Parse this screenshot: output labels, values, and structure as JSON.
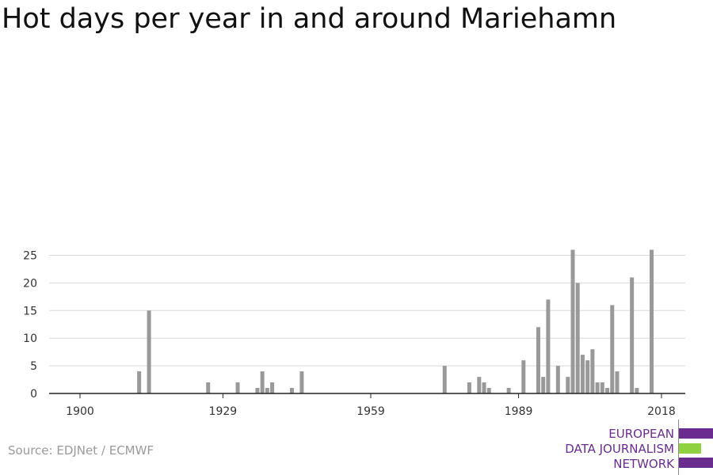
{
  "title": "Hot days per year in and around Mariehamn",
  "source": "Source: EDJNet / ECMWF",
  "logo": {
    "lines": [
      "EUROPEAN",
      "DATA JOURNALISM",
      "NETWORK"
    ],
    "colors": [
      "#6a2d8f",
      "#8fd13f",
      "#6a2d8f"
    ]
  },
  "chart_data": {
    "type": "bar",
    "title": "Hot days per year in and around Mariehamn",
    "xlabel": "",
    "ylabel": "",
    "xlim": [
      1894,
      2020
    ],
    "ylim": [
      0,
      27
    ],
    "x_ticks": [
      1900,
      1929,
      1959,
      1989,
      2018
    ],
    "y_ticks": [
      0,
      5,
      10,
      15,
      20,
      25
    ],
    "grid": true,
    "bar_color": "#999999",
    "series": [
      {
        "x": [
          1912,
          1914,
          1926,
          1932,
          1936,
          1937,
          1938,
          1939,
          1943,
          1945,
          1974,
          1979,
          1981,
          1982,
          1983,
          1987,
          1990,
          1993,
          1994,
          1995,
          1997,
          1999,
          2000,
          2001,
          2002,
          2003,
          2004,
          2005,
          2006,
          2007,
          2008,
          2009,
          2012,
          2013,
          2016
        ],
        "values": [
          4,
          15,
          2,
          2,
          1,
          4,
          1,
          2,
          1,
          4,
          5,
          2,
          3,
          2,
          1,
          1,
          6,
          12,
          3,
          17,
          5,
          3,
          26,
          20,
          7,
          6,
          8,
          2,
          2,
          1,
          16,
          4,
          21,
          1,
          26
        ]
      }
    ]
  }
}
